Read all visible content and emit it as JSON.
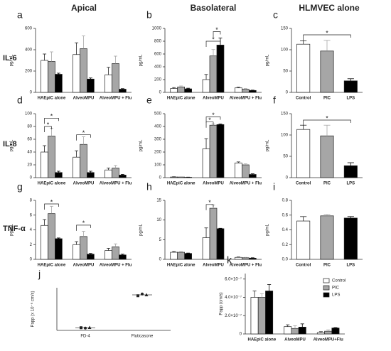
{
  "headers": [
    "Apical",
    "Basolateral",
    "HLMVEC alone"
  ],
  "row_labels": [
    "IL-6",
    "IL-8",
    "TNF-α"
  ],
  "chart_data": [
    {
      "type": "bar",
      "label": "a",
      "ylabel": "pg/mL",
      "categories": [
        "HAEpiC alone",
        "AlveoMPU",
        "AlveoMPU + Flu"
      ],
      "series": [
        {
          "color": "#ffffff",
          "values": [
            300,
            355,
            165
          ],
          "errors": [
            60,
            110,
            70
          ]
        },
        {
          "color": "#a6a6a6",
          "values": [
            290,
            410,
            270
          ],
          "errors": [
            90,
            120,
            70
          ]
        },
        {
          "color": "#000000",
          "values": [
            170,
            125,
            30
          ],
          "errors": [
            10,
            10,
            5
          ]
        }
      ],
      "ylim": [
        0,
        600
      ],
      "yticks": [
        0,
        200,
        400,
        600
      ],
      "annotations": []
    },
    {
      "type": "bar",
      "label": "b",
      "ylabel": "pg/mL",
      "categories": [
        "HAEpiC alone",
        "AlveoMPU",
        "AlveoMPU + Flu"
      ],
      "series": [
        {
          "color": "#ffffff",
          "values": [
            60,
            200,
            70
          ],
          "errors": [
            15,
            80,
            10
          ]
        },
        {
          "color": "#a6a6a6",
          "values": [
            85,
            570,
            50
          ],
          "errors": [
            15,
            100,
            10
          ]
        },
        {
          "color": "#000000",
          "values": [
            55,
            740,
            30
          ],
          "errors": [
            10,
            110,
            5
          ]
        }
      ],
      "ylim": [
        0,
        1000
      ],
      "yticks": [
        0,
        200,
        400,
        600,
        800,
        1000
      ],
      "annotations": [
        "*",
        "*"
      ]
    },
    {
      "type": "bar",
      "label": "c",
      "ylabel": "pg/mL",
      "categories": [
        "Control",
        "PIC",
        "LPS"
      ],
      "colors": [
        "#ffffff",
        "#a6a6a6",
        "#000000"
      ],
      "values": [
        113,
        97,
        27
      ],
      "errors": [
        8,
        25,
        5
      ],
      "ylim": [
        0,
        150
      ],
      "yticks": [
        0,
        50,
        100,
        150
      ],
      "annotations": [
        "*"
      ]
    },
    {
      "type": "bar",
      "label": "d",
      "ylabel": "pg/mL",
      "categories": [
        "HAEpiC alone",
        "AlveoMPU",
        "AlveoMPU + Flu"
      ],
      "series": [
        {
          "color": "#ffffff",
          "values": [
            40,
            32,
            12
          ],
          "errors": [
            10,
            10,
            3
          ]
        },
        {
          "color": "#a6a6a6",
          "values": [
            65,
            52,
            15
          ],
          "errors": [
            12,
            12,
            4
          ]
        },
        {
          "color": "#000000",
          "values": [
            8,
            8,
            4
          ],
          "errors": [
            2,
            2,
            1
          ]
        }
      ],
      "ylim": [
        0,
        100
      ],
      "yticks": [
        0,
        20,
        40,
        60,
        80,
        100
      ],
      "annotations": [
        "*",
        "*",
        "*"
      ]
    },
    {
      "type": "bar",
      "label": "e",
      "ylabel": "pg/mL",
      "categories": [
        "HAEpiC alone",
        "AlveoMPU",
        "AlveoMPU + Flu"
      ],
      "series": [
        {
          "color": "#ffffff",
          "values": [
            5,
            225,
            115
          ],
          "errors": [
            2,
            80,
            8
          ]
        },
        {
          "color": "#a6a6a6",
          "values": [
            5,
            410,
            100
          ],
          "errors": [
            2,
            10,
            8
          ]
        },
        {
          "color": "#000000",
          "values": [
            3,
            415,
            25
          ],
          "errors": [
            1,
            5,
            5
          ]
        }
      ],
      "ylim": [
        0,
        500
      ],
      "yticks": [
        0,
        100,
        200,
        300,
        400,
        500
      ],
      "annotations": [
        "*",
        "*"
      ]
    },
    {
      "type": "bar",
      "label": "f",
      "ylabel": "pg/mL",
      "categories": [
        "Control",
        "PIC",
        "LPS"
      ],
      "colors": [
        "#ffffff",
        "#a6a6a6",
        "#000000"
      ],
      "values": [
        113,
        98,
        28
      ],
      "errors": [
        10,
        25,
        7
      ],
      "ylim": [
        0,
        150
      ],
      "yticks": [
        0,
        50,
        100,
        150
      ],
      "annotations": [
        "*"
      ]
    },
    {
      "type": "bar",
      "label": "g",
      "ylabel": "pg/mL",
      "categories": [
        "HAEpiC alone",
        "AlveoMPU",
        "AlveoMPU + Flu"
      ],
      "series": [
        {
          "color": "#ffffff",
          "values": [
            4.6,
            2.0,
            1.2
          ],
          "errors": [
            0.8,
            0.4,
            0.3
          ]
        },
        {
          "color": "#a6a6a6",
          "values": [
            6.2,
            3.1,
            1.7
          ],
          "errors": [
            1.0,
            0.7,
            0.4
          ]
        },
        {
          "color": "#000000",
          "values": [
            2.8,
            0.7,
            0.6
          ],
          "errors": [
            0.1,
            0.1,
            0.1
          ]
        }
      ],
      "ylim": [
        0,
        8
      ],
      "yticks": [
        0,
        2,
        4,
        6,
        8
      ],
      "annotations": [
        "*",
        "*"
      ]
    },
    {
      "type": "bar",
      "label": "h",
      "ylabel": "pg/mL",
      "categories": [
        "HAEpiC alone",
        "AlveoMPU",
        "AlveoMPU + Flu"
      ],
      "series": [
        {
          "color": "#ffffff",
          "values": [
            1.8,
            5.5,
            0.5
          ],
          "errors": [
            0.2,
            2.5,
            0.1
          ]
        },
        {
          "color": "#a6a6a6",
          "values": [
            1.8,
            13,
            0.4
          ],
          "errors": [
            0.2,
            0.8,
            0.1
          ]
        },
        {
          "color": "#000000",
          "values": [
            1.5,
            7.8,
            0.3
          ],
          "errors": [
            0.1,
            0.1,
            0.1
          ]
        }
      ],
      "ylim": [
        0,
        15
      ],
      "yticks": [
        0,
        5,
        10,
        15
      ],
      "annotations": [
        "*"
      ]
    },
    {
      "type": "bar",
      "label": "i",
      "ylabel": "pg/mL",
      "categories": [
        "Control",
        "PIC",
        "LPS"
      ],
      "colors": [
        "#ffffff",
        "#a6a6a6",
        "#000000"
      ],
      "values": [
        0.52,
        0.59,
        0.56
      ],
      "errors": [
        0.06,
        0.02,
        0.02
      ],
      "ylim": [
        0,
        0.8
      ],
      "yticks": [
        {
          "value": 0,
          "label": "0.0"
        },
        0.2,
        0.4,
        0.6,
        0.8
      ],
      "annotations": []
    },
    {
      "type": "dot",
      "label": "j",
      "ylabel": "Papp (x 10⁻⁶ cm/s)",
      "categories": [
        "FD-4",
        "Fluticasone"
      ],
      "points": [
        [
          0.15,
          0.13,
          0.16
        ],
        [
          1.95,
          2.05,
          2.0
        ]
      ],
      "means": [
        0.15,
        2.0
      ],
      "ylim": [
        0,
        2.4
      ],
      "yticks": []
    },
    {
      "type": "bar",
      "label": "k",
      "ylabel": "Papp (cm/s)",
      "categories": [
        "HAEpiC alone",
        "AlveoMPU",
        "AlveoMPU+Flu"
      ],
      "series": [
        {
          "name": "Control",
          "color": "#ffffff",
          "values": [
            4e-07,
            8e-08,
            1.5e-08
          ],
          "errors": [
            7e-08,
            2e-08,
            1e-08
          ]
        },
        {
          "name": "PIC",
          "color": "#a6a6a6",
          "values": [
            4e-07,
            6e-08,
            3e-08
          ],
          "errors": [
            4e-08,
            3e-08,
            1.5e-08
          ]
        },
        {
          "name": "LPS",
          "color": "#000000",
          "values": [
            4.7e-07,
            7.5e-08,
            6.5e-08
          ],
          "errors": [
            7e-08,
            3.5e-08,
            5e-09
          ]
        }
      ],
      "ylim": [
        0,
        6.6e-07
      ],
      "yticks": [
        0,
        {
          "value": 2e-07,
          "label": "2.0×10⁻⁷"
        },
        {
          "value": 4e-07,
          "label": "4.0×10⁻⁷"
        },
        {
          "value": 6e-07,
          "label": "6.0×10⁻⁷"
        }
      ],
      "legend": "top-right",
      "annotations": []
    }
  ]
}
